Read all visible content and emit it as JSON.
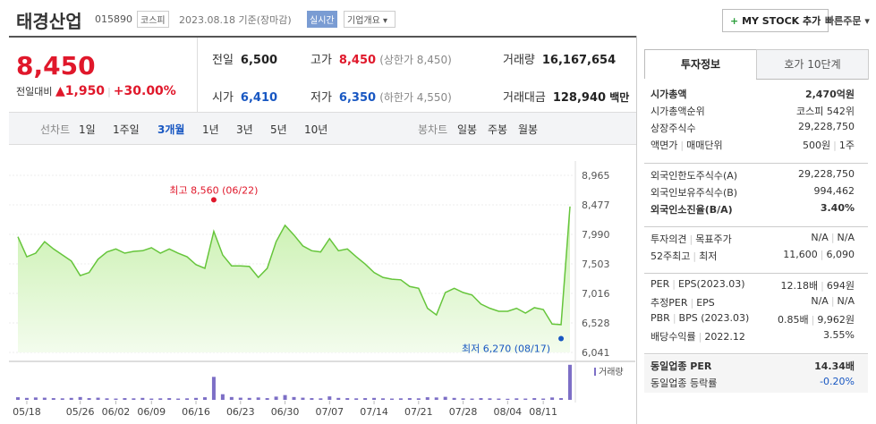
{
  "header": {
    "title": "태경산업",
    "code": "015890",
    "market": "코스피",
    "date": "2023.08.18",
    "basis": "기준(장마감)",
    "realtime": "실시간",
    "overview": "기업개요",
    "my_stock": "MY STOCK 추가",
    "quick_order": "빠른주문"
  },
  "quote": {
    "price": "8,450",
    "change_label": "전일대비",
    "change": "1,950",
    "change_rate": "+30.00%",
    "cells": [
      {
        "label": "전일",
        "value": "6,500"
      },
      {
        "label": "고가",
        "value": "8,450",
        "note": "(상한가 8,450)",
        "color": "#e0182b"
      },
      {
        "label": "거래량",
        "value": "16,167,654"
      },
      {
        "label": "시가",
        "value": "6,410",
        "color": "#1857c2"
      },
      {
        "label": "저가",
        "value": "6,350",
        "note": "(하한가 4,550)",
        "color": "#1857c2"
      },
      {
        "label": "거래대금",
        "value": "128,940",
        "unit": "백만"
      }
    ]
  },
  "tabs": {
    "line_label": "선차트",
    "line_items": [
      "1일",
      "1주일",
      "3개월",
      "1년",
      "3년",
      "5년",
      "10년"
    ],
    "selected_index": 2,
    "candle_label": "봉차트",
    "candle_items": [
      "일봉",
      "주봉",
      "월봉"
    ]
  },
  "chart_data": {
    "type": "line",
    "color": "#66c53b",
    "ylim": [
      6041,
      8965
    ],
    "yticks": [
      {
        "value": 8965,
        "label": "8,965"
      },
      {
        "value": 8477,
        "label": "8,477"
      },
      {
        "value": 7990,
        "label": "7,990"
      },
      {
        "value": 7503,
        "label": "7,503"
      },
      {
        "value": 7016,
        "label": "7,016"
      },
      {
        "value": 6528,
        "label": "6,528"
      },
      {
        "value": 6041,
        "label": "6,041"
      }
    ],
    "xlim": [
      0,
      62
    ],
    "xticks": [
      {
        "value": 1,
        "label": "05/18"
      },
      {
        "value": 7,
        "label": "05/26"
      },
      {
        "value": 11,
        "label": "06/02"
      },
      {
        "value": 15,
        "label": "06/09"
      },
      {
        "value": 20,
        "label": "06/16"
      },
      {
        "value": 25,
        "label": "06/23"
      },
      {
        "value": 30,
        "label": "06/30"
      },
      {
        "value": 35,
        "label": "07/07"
      },
      {
        "value": 40,
        "label": "07/14"
      },
      {
        "value": 45,
        "label": "07/21"
      },
      {
        "value": 50,
        "label": "07/28"
      },
      {
        "value": 55,
        "label": "08/04"
      },
      {
        "value": 59,
        "label": "08/11"
      }
    ],
    "values": [
      7950,
      7620,
      7680,
      7870,
      7750,
      7650,
      7550,
      7310,
      7360,
      7580,
      7700,
      7750,
      7680,
      7710,
      7720,
      7770,
      7680,
      7750,
      7680,
      7620,
      7490,
      7430,
      8040,
      7650,
      7470,
      7470,
      7460,
      7280,
      7430,
      7870,
      8140,
      7980,
      7800,
      7720,
      7700,
      7920,
      7720,
      7750,
      7620,
      7500,
      7360,
      7280,
      7250,
      7240,
      7130,
      7100,
      6770,
      6660,
      7030,
      7100,
      7030,
      6990,
      6840,
      6770,
      6720,
      6720,
      6770,
      6690,
      6780,
      6750,
      6510,
      6500,
      8450
    ],
    "high": {
      "label": "최고 8,560 (06/22)",
      "value": 8560,
      "x": 22
    },
    "low": {
      "label": "최저 6,270 (08/17)",
      "value": 6270,
      "x": 61
    },
    "volume_label": "거래량",
    "volume_color": "#7d6fc6",
    "volume_lim": [
      0,
      16500000
    ],
    "volume": [
      1200000,
      900000,
      1100000,
      1000000,
      800000,
      700000,
      900000,
      1300000,
      800000,
      1000000,
      700000,
      600000,
      800000,
      700000,
      900000,
      600000,
      700000,
      800000,
      600000,
      700000,
      900000,
      1200000,
      10600000,
      2600000,
      1300000,
      1000000,
      900000,
      1100000,
      800000,
      1500000,
      2200000,
      1300000,
      1000000,
      800000,
      700000,
      1600000,
      900000,
      800000,
      700000,
      800000,
      900000,
      700000,
      600000,
      700000,
      800000,
      700000,
      1200000,
      1100000,
      1400000,
      900000,
      700000,
      600000,
      800000,
      700000,
      600000,
      500000,
      700000,
      600000,
      800000,
      600000,
      1100000,
      800000,
      16167654
    ]
  },
  "sidebar": {
    "tabs": [
      "투자정보",
      "호가 10단계"
    ],
    "groups": [
      [
        {
          "label": [
            "시가총액"
          ],
          "value": [
            "2,470억원"
          ],
          "bold": true
        },
        {
          "label": [
            "시가총액순위"
          ],
          "value": [
            "코스피 542위"
          ]
        },
        {
          "label": [
            "상장주식수"
          ],
          "value": [
            "29,228,750"
          ]
        },
        {
          "label": [
            "액면가",
            "매매단위"
          ],
          "value": [
            "500원",
            "1주"
          ]
        }
      ],
      [
        {
          "label": [
            "외국인한도주식수(A)"
          ],
          "value": [
            "29,228,750"
          ]
        },
        {
          "label": [
            "외국인보유주식수(B)"
          ],
          "value": [
            "994,462"
          ]
        },
        {
          "label": [
            "외국인소진율(B/A)"
          ],
          "value": [
            "3.40%"
          ],
          "bold": true
        }
      ],
      [
        {
          "label": [
            "투자의견",
            "목표주가"
          ],
          "value": [
            "N/A",
            "N/A"
          ]
        },
        {
          "label": [
            "52주최고",
            "최저"
          ],
          "value": [
            "11,600",
            "6,090"
          ]
        }
      ],
      [
        {
          "label": [
            "PER",
            "EPS(2023.03)"
          ],
          "value": [
            "12.18배",
            "694원"
          ]
        },
        {
          "label": [
            "추정PER",
            "EPS"
          ],
          "value": [
            "N/A",
            "N/A"
          ]
        },
        {
          "label": [
            "PBR",
            "BPS (2023.03)"
          ],
          "value": [
            "0.85배",
            "9,962원"
          ]
        },
        {
          "label": [
            "배당수익률",
            "2022.12"
          ],
          "value": [
            "3.55%"
          ]
        }
      ],
      [
        {
          "label": [
            "동일업종 PER"
          ],
          "value": [
            "14.34배"
          ],
          "bold": true
        },
        {
          "label": [
            "동일업종 등락률"
          ],
          "value": [
            "-0.20%"
          ],
          "color": "#1857c2"
        }
      ]
    ]
  }
}
